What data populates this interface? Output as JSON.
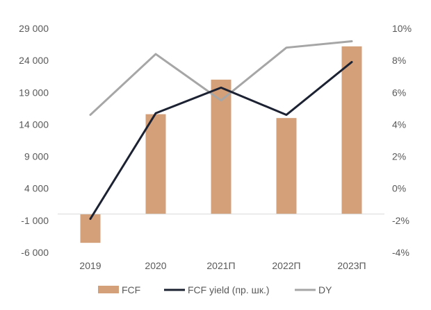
{
  "chart_data": {
    "type": "bar",
    "categories": [
      "2019",
      "2020",
      "2021П",
      "2022П",
      "2023П"
    ],
    "series": [
      {
        "name": "FCF",
        "type": "bar",
        "axis": "left",
        "color": "#D4A07A",
        "values": [
          -4500,
          15600,
          21000,
          15000,
          26200
        ]
      },
      {
        "name": "FCF yield (пр. шк.)",
        "type": "line",
        "axis": "right",
        "color": "#1C2232",
        "values": [
          -1.9,
          4.7,
          6.3,
          4.6,
          7.9
        ]
      },
      {
        "name": "DY",
        "type": "line",
        "axis": "right",
        "color": "#A6A6A6",
        "values": [
          4.6,
          8.4,
          5.5,
          8.8,
          9.2
        ]
      }
    ],
    "y_left": {
      "ticks": [
        29000,
        24000,
        19000,
        14000,
        9000,
        4000,
        -1000,
        -6000
      ],
      "tick_labels": [
        "29 000",
        "24 000",
        "19 000",
        "14 000",
        "9 000",
        "4 000",
        "-1 000",
        "-6 000"
      ],
      "range": [
        -6000,
        29000
      ]
    },
    "y_right": {
      "ticks": [
        10,
        8,
        6,
        4,
        2,
        0,
        -2,
        -4
      ],
      "tick_labels": [
        "10%",
        "8%",
        "6%",
        "4%",
        "2%",
        "0%",
        "-2%",
        "-4%"
      ],
      "range": [
        -4,
        10
      ]
    },
    "title": "",
    "xlabel": "",
    "grid": false,
    "legend_position": "bottom"
  }
}
